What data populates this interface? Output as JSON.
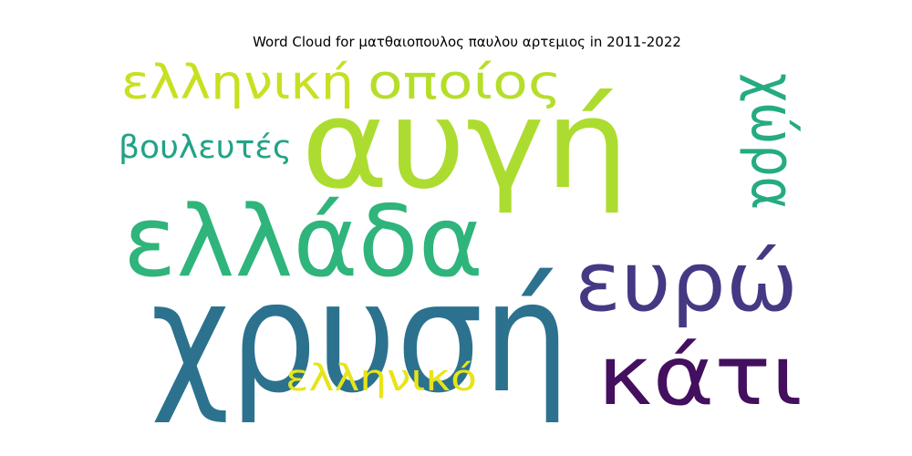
{
  "chart_data": {
    "type": "wordcloud",
    "title": "Word Cloud for ματθαιοπουλος παυλου αρτεμιος in 2011-2022",
    "words": [
      {
        "text": "αυγή",
        "color": "#addc30"
      },
      {
        "text": "χρυσή",
        "color": "#2c728e"
      },
      {
        "text": "ελλάδα",
        "color": "#2fb47c"
      },
      {
        "text": "ευρώ",
        "color": "#443983"
      },
      {
        "text": "κάτι",
        "color": "#440f5e"
      },
      {
        "text": "χώρα",
        "color": "#25ab82"
      },
      {
        "text": "ελληνική",
        "color": "#c8e020"
      },
      {
        "text": "οποίος",
        "color": "#b5de2b"
      },
      {
        "text": "βουλευτές",
        "color": "#20a386"
      },
      {
        "text": "ελληνικό",
        "color": "#e7e419"
      }
    ]
  }
}
